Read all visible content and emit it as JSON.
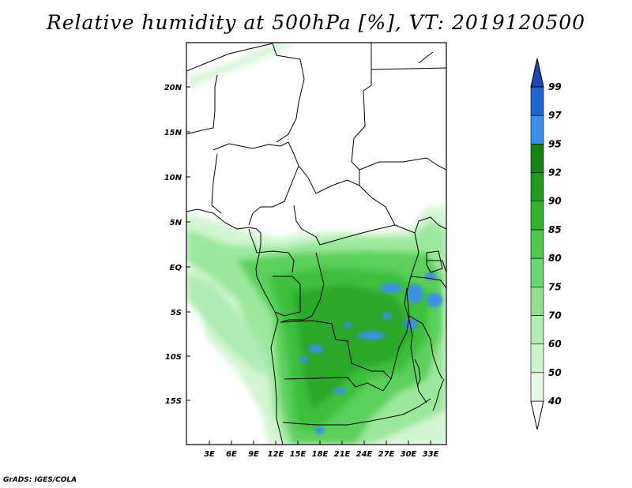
{
  "title": "Relative humidity at 500hPa [%], VT: 2019120500",
  "credit": "GrADS: IGES/COLA",
  "map": {
    "lat_ticks": [
      "20N",
      "15N",
      "10N",
      "5N",
      "EQ",
      "5S",
      "10S",
      "15S"
    ],
    "lon_ticks": [
      "3E",
      "6E",
      "9E",
      "12E",
      "15E",
      "18E",
      "21E",
      "24E",
      "27E",
      "30E",
      "33E"
    ],
    "lon_range": [
      0,
      35
    ],
    "lat_range": [
      -19.5,
      25
    ]
  },
  "colorbar": {
    "labels": [
      "40",
      "50",
      "60",
      "70",
      "75",
      "80",
      "85",
      "90",
      "92",
      "95",
      "97",
      "99"
    ],
    "colors": [
      "#ffffff",
      "#e6f9e6",
      "#cdf4cd",
      "#b0edb0",
      "#8ee28e",
      "#6dd66d",
      "#4dc94d",
      "#31b531",
      "#1f9b1f",
      "#138513",
      "#3c8fe6",
      "#2066d0",
      "#1a47b0"
    ]
  },
  "colors": {
    "land_line": "#000000",
    "frame": "#000000"
  }
}
